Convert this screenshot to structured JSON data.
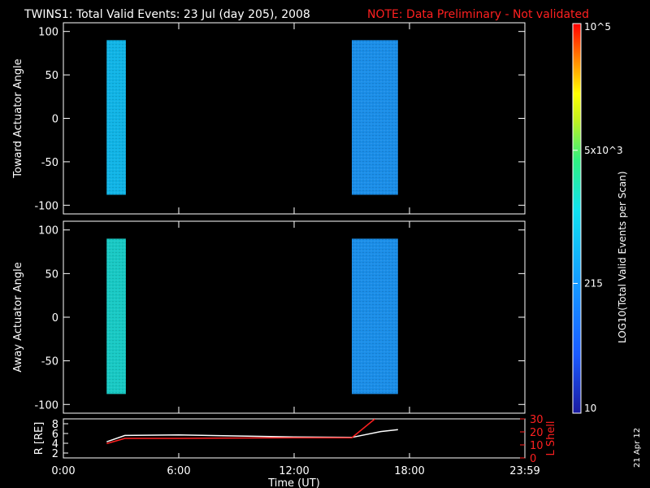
{
  "header": {
    "title": "TWINS1: Total Valid Events: 23 Jul (day 205), 2008",
    "note": "NOTE: Data Preliminary - Not validated",
    "note_color": "#ff2020"
  },
  "stamp": "21 Apr 12",
  "colorbar": {
    "label": "LOG10(Total Valid Events per Scan)",
    "ticks": [
      "10",
      "215",
      "5x10^3",
      "10^5"
    ],
    "tick_values": [
      10,
      215,
      5000,
      100000
    ],
    "scale": "log",
    "colormap": "rainbow"
  },
  "chart_data": [
    {
      "type": "heatmap",
      "ylabel": "Toward Actuator Angle",
      "ylim": [
        -110,
        110
      ],
      "yticks": [
        "100",
        "50",
        "0",
        "-50",
        "-100"
      ],
      "ytick_values": [
        100,
        50,
        0,
        -50,
        -100
      ],
      "blocks": [
        {
          "t_start": 2.25,
          "t_end": 3.25,
          "angle_min": -88,
          "angle_max": 90,
          "color": "#11b4e6"
        },
        {
          "t_start": 15.0,
          "t_end": 17.4,
          "angle_min": -88,
          "angle_max": 90,
          "color": "#1b8ee8"
        }
      ]
    },
    {
      "type": "heatmap",
      "ylabel": "Away Actuator Angle",
      "ylim": [
        -110,
        110
      ],
      "yticks": [
        "100",
        "50",
        "0",
        "-50",
        "-100"
      ],
      "ytick_values": [
        100,
        50,
        0,
        -50,
        -100
      ],
      "blocks": [
        {
          "t_start": 2.25,
          "t_end": 3.25,
          "angle_min": -88,
          "angle_max": 90,
          "color": "#19c9c4"
        },
        {
          "t_start": 15.0,
          "t_end": 17.4,
          "angle_min": -88,
          "angle_max": 90,
          "color": "#1b8ee8"
        }
      ]
    },
    {
      "type": "line",
      "ylabel": "R [RE]",
      "ylim": [
        1,
        9
      ],
      "yticks": [
        "8",
        "6",
        "4",
        "2"
      ],
      "ytick_values": [
        8,
        6,
        4,
        2
      ],
      "y2label": "L Shell",
      "y2lim": [
        0,
        30
      ],
      "y2ticks": [
        "30",
        "20",
        "10",
        "0"
      ],
      "y2tick_values": [
        30,
        20,
        10,
        0
      ],
      "y2color": "#ff2020",
      "series": [
        {
          "axis": "left",
          "color": "#ffffff",
          "x": [
            2.25,
            3.2,
            6,
            12,
            15.0,
            16.5,
            17.4
          ],
          "y": [
            4.3,
            5.6,
            5.7,
            5.3,
            5.2,
            6.4,
            6.8
          ]
        },
        {
          "axis": "right",
          "color": "#ff2020",
          "x": [
            2.25,
            3.2,
            6,
            12,
            15.0,
            16.2
          ],
          "y": [
            11,
            15,
            15,
            15.5,
            15.5,
            30
          ]
        }
      ]
    }
  ],
  "time_axis": {
    "xlabel": "Time (UT)",
    "xlim": [
      0,
      24
    ],
    "ticks": [
      "0:00",
      "6:00",
      "12:00",
      "18:00",
      "23:59"
    ],
    "tick_values": [
      0,
      6,
      12,
      18,
      24
    ]
  }
}
